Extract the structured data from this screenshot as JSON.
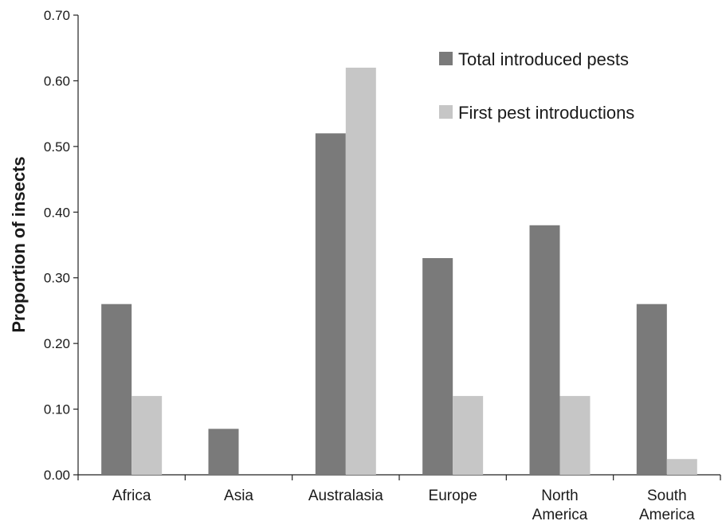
{
  "chart_data": {
    "type": "bar",
    "title": "",
    "xlabel": "",
    "ylabel": "Proportion of insects",
    "ylim": [
      0,
      0.7
    ],
    "yticks": [
      "0.00",
      "0.10",
      "0.20",
      "0.30",
      "0.40",
      "0.50",
      "0.60",
      "0.70"
    ],
    "categories": [
      [
        "Africa"
      ],
      [
        "Asia"
      ],
      [
        "Australasia"
      ],
      [
        "Europe"
      ],
      [
        "North",
        "America"
      ],
      [
        "South",
        "America"
      ]
    ],
    "series": [
      {
        "name": "Total introduced pests",
        "color": "#7a7a7a",
        "values": [
          0.26,
          0.07,
          0.52,
          0.33,
          0.38,
          0.26
        ]
      },
      {
        "name": "First pest introductions",
        "color": "#c6c6c6",
        "values": [
          0.12,
          0.0,
          0.62,
          0.12,
          0.12,
          0.024
        ]
      }
    ],
    "grid": false,
    "legend_position": "top-right"
  }
}
